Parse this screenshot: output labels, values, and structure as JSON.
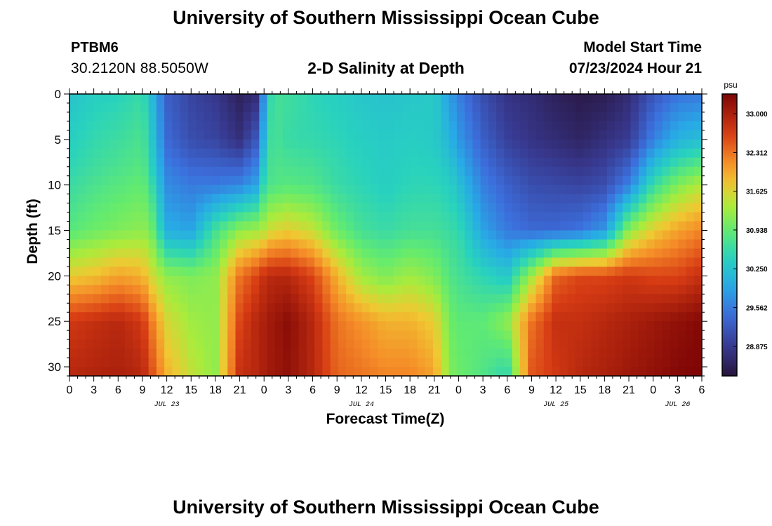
{
  "page": {
    "main_title": "University of Southern Mississippi Ocean Cube",
    "bottom_title": "University of Southern Mississippi Ocean Cube",
    "station_id": "PTBM6",
    "coordinates": "30.2120N  88.5050W",
    "subtitle": "2-D Salinity at Depth",
    "model_start_label": "Model Start Time",
    "model_start_value": "07/23/2024 Hour 21"
  },
  "chart_data": {
    "type": "heatmap",
    "title": "2-D Salinity at Depth",
    "xlabel": "Forecast Time(Z)",
    "ylabel": "Depth (ft)",
    "x_range_hours": [
      0,
      78
    ],
    "x_tick_step_hours": 3,
    "x_tick_labels": [
      "0",
      "3",
      "6",
      "9",
      "12",
      "15",
      "18",
      "21",
      "0",
      "3",
      "6",
      "9",
      "12",
      "15",
      "18",
      "21",
      "0",
      "3",
      "6",
      "9",
      "12",
      "15",
      "18",
      "21",
      "0",
      "3",
      "6"
    ],
    "date_labels": [
      {
        "label": "JUL 23",
        "hour": 12
      },
      {
        "label": "JUL 24",
        "hour": 36
      },
      {
        "label": "JUL 25",
        "hour": 60
      },
      {
        "label": "JUL 26",
        "hour": 75
      }
    ],
    "y_range_ft": [
      0,
      31
    ],
    "y_ticks": [
      0,
      5,
      10,
      15,
      20,
      25,
      30
    ],
    "y_inverted": true,
    "grid_nx": 80,
    "grid_ny": 31,
    "colorbar": {
      "unit": "psu",
      "range": [
        28.35,
        33.35
      ],
      "tick_values": [
        33.0,
        32.312,
        31.625,
        30.938,
        30.25,
        29.562,
        28.875
      ],
      "tick_labels": [
        "33.000",
        "32.312",
        "31.625",
        "30.938",
        "30.250",
        "29.562",
        "28.875"
      ]
    },
    "salinity_profiles": [
      {
        "hour": 0,
        "depth": [
          0,
          8,
          15,
          20,
          25,
          31
        ],
        "psu": [
          30.25,
          30.5,
          30.85,
          31.7,
          32.7,
          32.9
        ]
      },
      {
        "hour": 3,
        "depth": [
          0,
          8,
          15,
          20,
          25,
          31
        ],
        "psu": [
          30.4,
          30.65,
          31.0,
          31.8,
          32.8,
          32.95
        ]
      },
      {
        "hour": 6,
        "depth": [
          0,
          8,
          15,
          20,
          25,
          31
        ],
        "psu": [
          30.45,
          30.75,
          31.1,
          32.0,
          32.9,
          33.0
        ]
      },
      {
        "hour": 9,
        "depth": [
          0,
          8,
          15,
          20,
          25,
          31
        ],
        "psu": [
          30.6,
          30.85,
          31.2,
          31.9,
          32.7,
          32.9
        ]
      },
      {
        "hour": 10,
        "depth": [
          0,
          8,
          15,
          20,
          25,
          31
        ],
        "psu": [
          30.2,
          30.5,
          31.1,
          31.6,
          32.3,
          32.6
        ]
      },
      {
        "hour": 12,
        "depth": [
          0,
          5,
          10,
          15,
          20,
          25,
          31
        ],
        "psu": [
          29.3,
          29.4,
          29.7,
          30.0,
          31.2,
          31.6,
          31.9
        ]
      },
      {
        "hour": 15,
        "depth": [
          0,
          5,
          10,
          15,
          20,
          25,
          31
        ],
        "psu": [
          29.0,
          29.1,
          29.55,
          29.9,
          31.1,
          31.3,
          31.5
        ]
      },
      {
        "hour": 18,
        "depth": [
          0,
          5,
          10,
          15,
          20,
          25,
          31
        ],
        "psu": [
          28.85,
          29.0,
          29.55,
          30.7,
          31.2,
          31.2,
          31.2
        ]
      },
      {
        "hour": 21,
        "depth": [
          0,
          5,
          10,
          15,
          20,
          25,
          31
        ],
        "psu": [
          28.55,
          28.75,
          29.65,
          31.2,
          32.3,
          32.6,
          32.8
        ]
      },
      {
        "hour": 23,
        "depth": [
          0,
          5,
          10,
          15,
          20,
          25,
          31
        ],
        "psu": [
          28.7,
          29.2,
          29.9,
          31.3,
          32.6,
          32.9,
          32.9
        ]
      },
      {
        "hour": 24,
        "depth": [
          0,
          5,
          10,
          15,
          20,
          25,
          31
        ],
        "psu": [
          29.8,
          30.1,
          30.6,
          31.4,
          32.8,
          33.0,
          33.0
        ]
      },
      {
        "hour": 25,
        "depth": [
          0,
          5,
          10,
          15,
          20,
          25,
          31
        ],
        "psu": [
          30.7,
          30.75,
          30.8,
          31.6,
          32.9,
          33.1,
          33.1
        ]
      },
      {
        "hour": 27,
        "depth": [
          0,
          5,
          10,
          15,
          20,
          25,
          31
        ],
        "psu": [
          30.65,
          30.6,
          30.85,
          31.7,
          32.9,
          33.25,
          33.2
        ]
      },
      {
        "hour": 30,
        "depth": [
          0,
          5,
          10,
          15,
          20,
          25,
          31
        ],
        "psu": [
          30.5,
          30.55,
          30.8,
          31.5,
          32.6,
          32.9,
          32.9
        ]
      },
      {
        "hour": 33,
        "depth": [
          0,
          5,
          10,
          15,
          20,
          25,
          31
        ],
        "psu": [
          30.4,
          30.5,
          30.6,
          31.0,
          31.9,
          32.3,
          32.4
        ]
      },
      {
        "hour": 36,
        "depth": [
          0,
          5,
          10,
          15,
          20,
          25,
          31
        ],
        "psu": [
          30.3,
          30.4,
          30.5,
          30.7,
          31.3,
          32.1,
          32.3
        ]
      },
      {
        "hour": 39,
        "depth": [
          0,
          5,
          10,
          15,
          20,
          25,
          31
        ],
        "psu": [
          30.25,
          30.35,
          30.4,
          30.6,
          31.1,
          31.9,
          32.2
        ]
      },
      {
        "hour": 42,
        "depth": [
          0,
          5,
          10,
          15,
          20,
          25,
          31
        ],
        "psu": [
          30.3,
          30.4,
          30.5,
          30.7,
          31.3,
          31.9,
          32.2
        ]
      },
      {
        "hour": 45,
        "depth": [
          0,
          5,
          10,
          15,
          20,
          25,
          31
        ],
        "psu": [
          30.35,
          30.35,
          30.5,
          30.7,
          31.1,
          31.7,
          32.0
        ]
      },
      {
        "hour": 47,
        "depth": [
          0,
          5,
          10,
          15,
          20,
          25,
          31
        ],
        "psu": [
          29.8,
          30.05,
          30.4,
          30.6,
          30.8,
          31.0,
          31.1
        ]
      },
      {
        "hour": 48,
        "depth": [
          0,
          5,
          10,
          15,
          20,
          25,
          31
        ],
        "psu": [
          29.6,
          29.8,
          30.2,
          30.55,
          30.7,
          30.9,
          31.0
        ]
      },
      {
        "hour": 51,
        "depth": [
          0,
          5,
          10,
          15,
          20,
          25,
          31
        ],
        "psu": [
          29.1,
          29.3,
          29.6,
          29.9,
          30.5,
          30.9,
          30.8
        ]
      },
      {
        "hour": 54,
        "depth": [
          0,
          5,
          10,
          15,
          20,
          25,
          31
        ],
        "psu": [
          28.8,
          28.95,
          29.3,
          29.55,
          30.3,
          31.2,
          30.5
        ]
      },
      {
        "hour": 57,
        "depth": [
          0,
          5,
          10,
          15,
          20,
          25,
          31
        ],
        "psu": [
          28.7,
          28.8,
          29.1,
          29.4,
          31.3,
          32.3,
          32.5
        ]
      },
      {
        "hour": 60,
        "depth": [
          0,
          5,
          10,
          15,
          20,
          25,
          31
        ],
        "psu": [
          28.55,
          28.7,
          29.05,
          29.4,
          32.4,
          32.8,
          32.7
        ]
      },
      {
        "hour": 63,
        "depth": [
          0,
          5,
          10,
          15,
          20,
          25,
          31
        ],
        "psu": [
          28.45,
          28.6,
          29.0,
          29.5,
          32.6,
          32.8,
          32.9
        ]
      },
      {
        "hour": 66,
        "depth": [
          0,
          5,
          10,
          15,
          20,
          25,
          31
        ],
        "psu": [
          28.5,
          28.75,
          29.1,
          29.8,
          32.6,
          32.9,
          33.0
        ]
      },
      {
        "hour": 69,
        "depth": [
          0,
          5,
          10,
          15,
          20,
          25,
          31
        ],
        "psu": [
          28.7,
          28.9,
          29.6,
          31.2,
          32.7,
          33.0,
          33.1
        ]
      },
      {
        "hour": 72,
        "depth": [
          0,
          5,
          10,
          15,
          20,
          25,
          31
        ],
        "psu": [
          29.2,
          29.6,
          30.6,
          31.7,
          32.6,
          33.1,
          33.2
        ]
      },
      {
        "hour": 75,
        "depth": [
          0,
          5,
          10,
          15,
          20,
          25,
          31
        ],
        "psu": [
          29.5,
          30.05,
          31.1,
          32.0,
          32.6,
          33.2,
          33.3
        ]
      },
      {
        "hour": 78,
        "depth": [
          0,
          5,
          10,
          15,
          20,
          25,
          31
        ],
        "psu": [
          29.55,
          30.2,
          31.4,
          32.2,
          32.8,
          33.3,
          33.35
        ]
      }
    ]
  }
}
